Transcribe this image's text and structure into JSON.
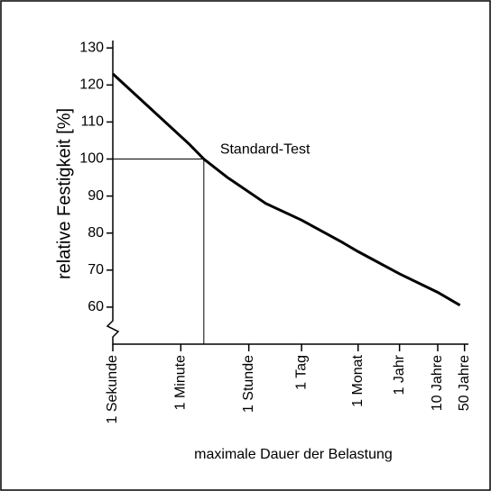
{
  "chart_data": {
    "type": "line",
    "ylabel": "relative Festigkeit [%]",
    "xlabel": "maximale Dauer der Belastung",
    "log_x": true,
    "x": [
      1,
      10,
      100,
      240,
      1000,
      10000,
      86400,
      1000000,
      2600000,
      31500000,
      315000000,
      1200000000
    ],
    "series": [
      {
        "name": null,
        "color": "#000000",
        "values": [
          123,
          113.5,
          104,
          100,
          95,
          88,
          83.5,
          77.5,
          75,
          69,
          64,
          60.5
        ]
      }
    ],
    "xlim": [
      1,
      2000000000
    ],
    "xticks": [
      {
        "value": 1,
        "label": "1 Sekunde"
      },
      {
        "value": 60,
        "label": "1 Minute"
      },
      {
        "value": 3600,
        "label": "1 Stunde"
      },
      {
        "value": 86400,
        "label": "1 Tag"
      },
      {
        "value": 2600000,
        "label": "1 Monat"
      },
      {
        "value": 31500000,
        "label": "1 Jahr"
      },
      {
        "value": 315000000,
        "label": "10 Jahre"
      },
      {
        "value": 1580000000,
        "label": "50 Jahre"
      }
    ],
    "ylim": [
      50,
      132
    ],
    "yticks": [
      60,
      70,
      80,
      90,
      100,
      110,
      120,
      130
    ],
    "annotations": [
      {
        "text": "Standard-Test",
        "x": 240,
        "y": 100
      }
    ]
  }
}
